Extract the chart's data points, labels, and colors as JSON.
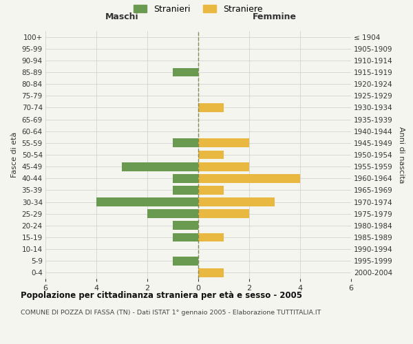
{
  "age_groups": [
    "0-4",
    "5-9",
    "10-14",
    "15-19",
    "20-24",
    "25-29",
    "30-34",
    "35-39",
    "40-44",
    "45-49",
    "50-54",
    "55-59",
    "60-64",
    "65-69",
    "70-74",
    "75-79",
    "80-84",
    "85-89",
    "90-94",
    "95-99",
    "100+"
  ],
  "birth_years": [
    "2000-2004",
    "1995-1999",
    "1990-1994",
    "1985-1989",
    "1980-1984",
    "1975-1979",
    "1970-1974",
    "1965-1969",
    "1960-1964",
    "1955-1959",
    "1950-1954",
    "1945-1949",
    "1940-1944",
    "1935-1939",
    "1930-1934",
    "1925-1929",
    "1920-1924",
    "1915-1919",
    "1910-1914",
    "1905-1909",
    "≤ 1904"
  ],
  "maschi": [
    0,
    1,
    0,
    1,
    1,
    2,
    4,
    1,
    1,
    3,
    0,
    1,
    0,
    0,
    0,
    0,
    0,
    1,
    0,
    0,
    0
  ],
  "femmine": [
    1,
    0,
    0,
    1,
    0,
    2,
    3,
    1,
    4,
    2,
    1,
    2,
    0,
    0,
    1,
    0,
    0,
    0,
    0,
    0,
    0
  ],
  "color_maschi": "#6a9a50",
  "color_femmine": "#e8b840",
  "title_main": "Popolazione per cittadinanza straniera per età e sesso - 2005",
  "title_sub": "COMUNE DI POZZA DI FASSA (TN) - Dati ISTAT 1° gennaio 2005 - Elaborazione TUTTITALIA.IT",
  "legend_maschi": "Stranieri",
  "legend_femmine": "Straniere",
  "xlabel_left": "Maschi",
  "xlabel_right": "Femmine",
  "ylabel_left": "Fasce di età",
  "ylabel_right": "Anni di nascita",
  "xlim": 6,
  "background_color": "#f5f5f0",
  "grid_color": "#cccccc",
  "dashed_line_color": "#888855"
}
